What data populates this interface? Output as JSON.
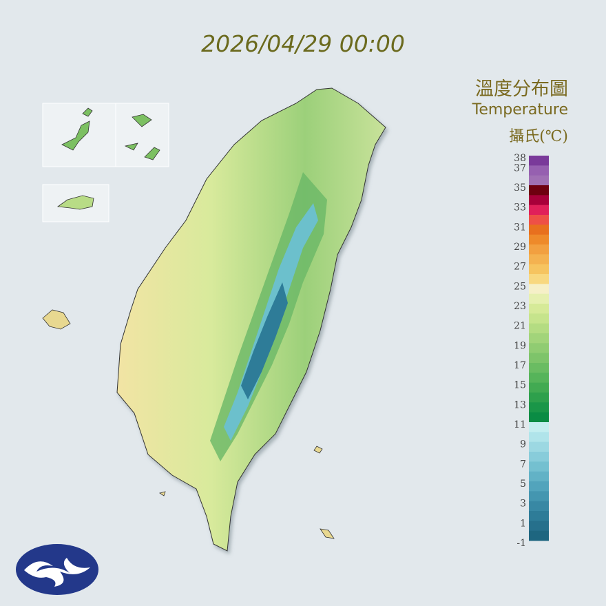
{
  "timestamp": "2026/04/29 00:00",
  "legend": {
    "title": "溫度分布圖",
    "subtitle": "Temperature",
    "unit": "攝氏(℃)",
    "labels": [
      38,
      37,
      35,
      33,
      31,
      29,
      27,
      25,
      23,
      21,
      19,
      17,
      15,
      13,
      11,
      9,
      7,
      5,
      3,
      1,
      -1
    ],
    "colors": [
      "#7a3a9a",
      "#9660b0",
      "#a070b4",
      "#6e0010",
      "#a8003a",
      "#e0205a",
      "#ee5046",
      "#e8701e",
      "#ee8a2a",
      "#f2a040",
      "#f4b250",
      "#f6c460",
      "#f8d880",
      "#f6f0c8",
      "#e6f0b0",
      "#d6ea98",
      "#c6e48c",
      "#b4dc82",
      "#a2d47a",
      "#90cc72",
      "#7ec46a",
      "#6abc62",
      "#56b45a",
      "#42aa52",
      "#2ea04c",
      "#1a9648",
      "#0a8c44",
      "#c4eef0",
      "#b0e4ea",
      "#9cd8e2",
      "#88ccda",
      "#74c0d0",
      "#62b2c6",
      "#52a4bc",
      "#4496b0",
      "#3888a4",
      "#2e7c98",
      "#26708c",
      "#1e6680"
    ]
  }
}
